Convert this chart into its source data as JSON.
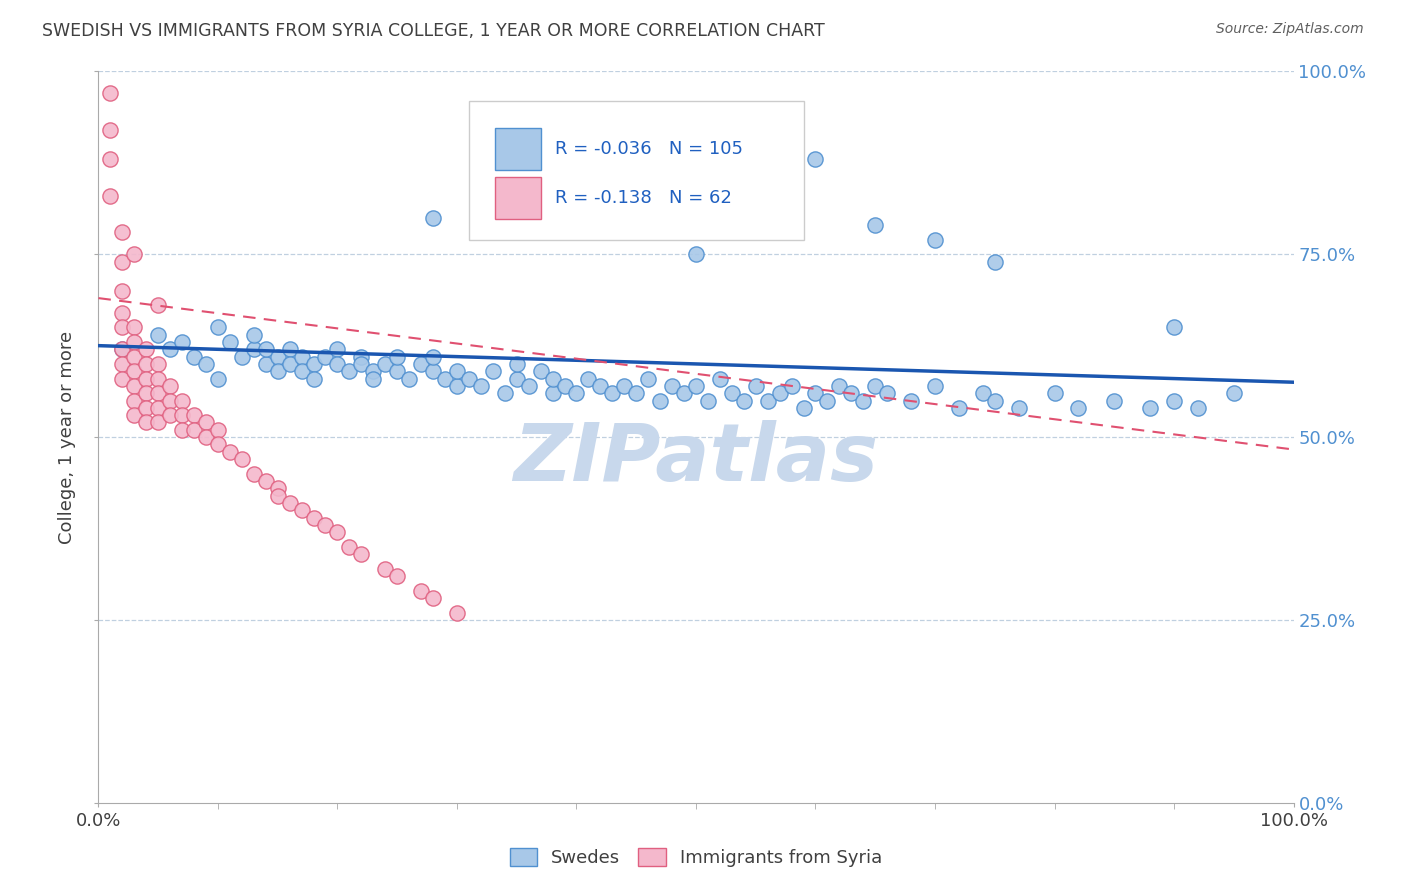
{
  "title": "SWEDISH VS IMMIGRANTS FROM SYRIA COLLEGE, 1 YEAR OR MORE CORRELATION CHART",
  "source": "Source: ZipAtlas.com",
  "ylabel": "College, 1 year or more",
  "legend": {
    "blue_r": -0.036,
    "blue_n": 105,
    "pink_r": -0.138,
    "pink_n": 62
  },
  "blue_color": "#a8c8e8",
  "blue_edge_color": "#5090d0",
  "pink_color": "#f4b8cc",
  "pink_edge_color": "#e06080",
  "blue_line_color": "#1a56b0",
  "pink_line_color": "#e05070",
  "watermark": "ZIPatlas",
  "watermark_color": "#c8d8ec",
  "background_color": "#ffffff",
  "grid_color": "#c0d0e0",
  "title_color": "#404040",
  "right_tick_color": "#5090d0",
  "blue_x": [
    0.02,
    0.05,
    0.06,
    0.07,
    0.08,
    0.09,
    0.1,
    0.1,
    0.11,
    0.12,
    0.13,
    0.13,
    0.14,
    0.14,
    0.15,
    0.15,
    0.16,
    0.16,
    0.17,
    0.17,
    0.18,
    0.18,
    0.19,
    0.2,
    0.2,
    0.21,
    0.22,
    0.22,
    0.23,
    0.23,
    0.24,
    0.25,
    0.25,
    0.26,
    0.27,
    0.28,
    0.28,
    0.29,
    0.3,
    0.3,
    0.31,
    0.32,
    0.33,
    0.34,
    0.35,
    0.35,
    0.36,
    0.37,
    0.38,
    0.38,
    0.39,
    0.4,
    0.41,
    0.42,
    0.43,
    0.44,
    0.45,
    0.46,
    0.47,
    0.48,
    0.49,
    0.5,
    0.51,
    0.52,
    0.53,
    0.54,
    0.55,
    0.56,
    0.57,
    0.58,
    0.59,
    0.6,
    0.61,
    0.62,
    0.63,
    0.64,
    0.65,
    0.66,
    0.68,
    0.7,
    0.72,
    0.74,
    0.75,
    0.77,
    0.8,
    0.82,
    0.85,
    0.88,
    0.9,
    0.92,
    0.95,
    0.28,
    0.32,
    0.36,
    0.4,
    0.44,
    0.48,
    0.52,
    0.56,
    0.6,
    0.5,
    0.65,
    0.7,
    0.75,
    0.9
  ],
  "blue_y": [
    0.62,
    0.64,
    0.62,
    0.63,
    0.61,
    0.6,
    0.58,
    0.65,
    0.63,
    0.61,
    0.62,
    0.64,
    0.6,
    0.62,
    0.61,
    0.59,
    0.62,
    0.6,
    0.61,
    0.59,
    0.6,
    0.58,
    0.61,
    0.62,
    0.6,
    0.59,
    0.61,
    0.6,
    0.59,
    0.58,
    0.6,
    0.59,
    0.61,
    0.58,
    0.6,
    0.59,
    0.61,
    0.58,
    0.57,
    0.59,
    0.58,
    0.57,
    0.59,
    0.56,
    0.58,
    0.6,
    0.57,
    0.59,
    0.56,
    0.58,
    0.57,
    0.56,
    0.58,
    0.57,
    0.56,
    0.57,
    0.56,
    0.58,
    0.55,
    0.57,
    0.56,
    0.57,
    0.55,
    0.58,
    0.56,
    0.55,
    0.57,
    0.55,
    0.56,
    0.57,
    0.54,
    0.56,
    0.55,
    0.57,
    0.56,
    0.55,
    0.57,
    0.56,
    0.55,
    0.57,
    0.54,
    0.56,
    0.55,
    0.54,
    0.56,
    0.54,
    0.55,
    0.54,
    0.55,
    0.54,
    0.56,
    0.8,
    0.87,
    0.83,
    0.85,
    0.82,
    0.78,
    0.86,
    0.84,
    0.88,
    0.75,
    0.79,
    0.77,
    0.74,
    0.65
  ],
  "pink_x": [
    0.01,
    0.01,
    0.01,
    0.01,
    0.02,
    0.02,
    0.02,
    0.02,
    0.02,
    0.02,
    0.02,
    0.02,
    0.03,
    0.03,
    0.03,
    0.03,
    0.03,
    0.03,
    0.03,
    0.04,
    0.04,
    0.04,
    0.04,
    0.04,
    0.04,
    0.05,
    0.05,
    0.05,
    0.05,
    0.05,
    0.06,
    0.06,
    0.06,
    0.07,
    0.07,
    0.07,
    0.08,
    0.08,
    0.09,
    0.09,
    0.1,
    0.1,
    0.11,
    0.12,
    0.13,
    0.14,
    0.15,
    0.15,
    0.16,
    0.17,
    0.18,
    0.19,
    0.2,
    0.21,
    0.22,
    0.24,
    0.25,
    0.27,
    0.28,
    0.3,
    0.03,
    0.05
  ],
  "pink_y": [
    0.97,
    0.92,
    0.88,
    0.83,
    0.78,
    0.74,
    0.7,
    0.67,
    0.65,
    0.62,
    0.6,
    0.58,
    0.65,
    0.63,
    0.61,
    0.59,
    0.57,
    0.55,
    0.53,
    0.62,
    0.6,
    0.58,
    0.56,
    0.54,
    0.52,
    0.6,
    0.58,
    0.56,
    0.54,
    0.52,
    0.57,
    0.55,
    0.53,
    0.55,
    0.53,
    0.51,
    0.53,
    0.51,
    0.52,
    0.5,
    0.51,
    0.49,
    0.48,
    0.47,
    0.45,
    0.44,
    0.43,
    0.42,
    0.41,
    0.4,
    0.39,
    0.38,
    0.37,
    0.35,
    0.34,
    0.32,
    0.31,
    0.29,
    0.28,
    0.26,
    0.75,
    0.68
  ]
}
